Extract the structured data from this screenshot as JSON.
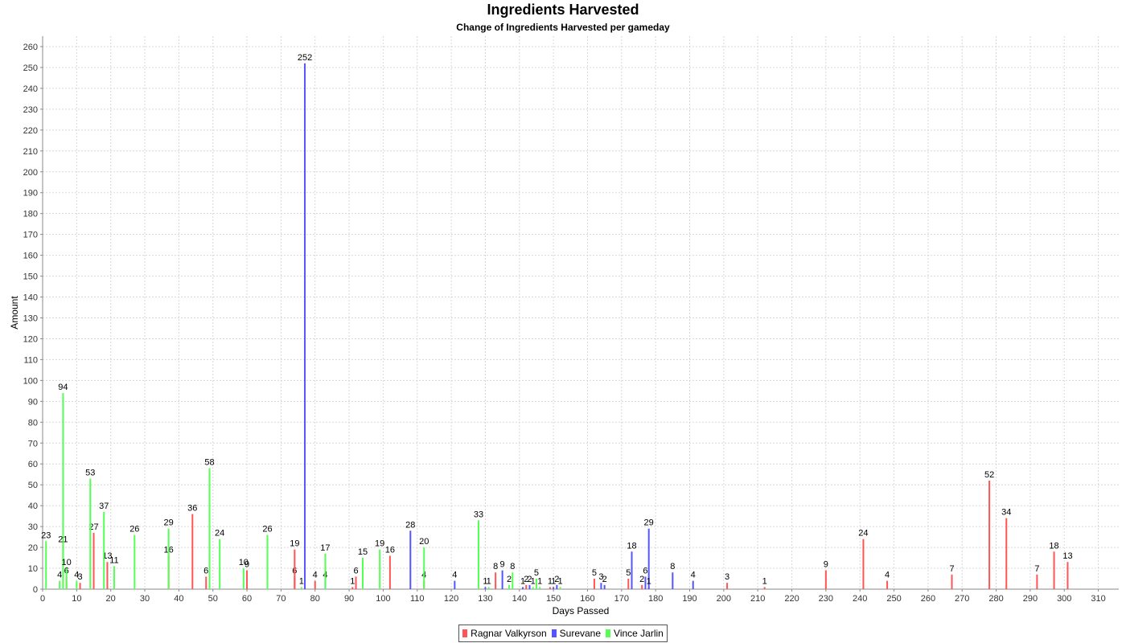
{
  "chart_data": {
    "type": "bar",
    "title": "Ingredients Harvested",
    "subtitle": "Change of Ingredients Harvested per gameday",
    "xlabel": "Days Passed",
    "ylabel": "Amount",
    "xlim": [
      0,
      316
    ],
    "ylim": [
      0,
      265
    ],
    "x_ticks": [
      0,
      10,
      20,
      30,
      40,
      50,
      60,
      70,
      80,
      90,
      100,
      110,
      120,
      130,
      140,
      150,
      160,
      170,
      180,
      190,
      200,
      210,
      220,
      230,
      240,
      250,
      260,
      270,
      280,
      290,
      300,
      310
    ],
    "y_ticks": [
      0,
      10,
      20,
      30,
      40,
      50,
      60,
      70,
      80,
      90,
      100,
      110,
      120,
      130,
      140,
      150,
      160,
      170,
      180,
      190,
      200,
      210,
      220,
      230,
      240,
      250,
      260
    ],
    "grid": true,
    "legend_position": "bottom",
    "series": [
      {
        "name": "Ragnar Valkyrson",
        "color": "#ff5555",
        "points": [
          [
            7,
            6
          ],
          [
            11,
            3
          ],
          [
            15,
            27
          ],
          [
            19,
            13
          ],
          [
            37,
            16
          ],
          [
            44,
            36
          ],
          [
            48,
            6
          ],
          [
            60,
            9
          ],
          [
            74,
            6
          ],
          [
            74,
            19
          ],
          [
            80,
            4
          ],
          [
            91,
            1
          ],
          [
            92,
            6
          ],
          [
            102,
            16
          ],
          [
            112,
            4
          ],
          [
            133,
            8
          ],
          [
            142,
            2
          ],
          [
            149,
            1
          ],
          [
            162,
            5
          ],
          [
            172,
            5
          ],
          [
            176,
            2
          ],
          [
            201,
            3
          ],
          [
            212,
            1
          ],
          [
            230,
            9
          ],
          [
            241,
            24
          ],
          [
            248,
            4
          ],
          [
            267,
            7
          ],
          [
            278,
            52
          ],
          [
            283,
            34
          ],
          [
            292,
            7
          ],
          [
            297,
            18
          ],
          [
            301,
            13
          ]
        ]
      },
      {
        "name": "Surevane",
        "color": "#5555ff",
        "points": [
          [
            77,
            252
          ],
          [
            83,
            4
          ],
          [
            108,
            28
          ],
          [
            121,
            4
          ],
          [
            130,
            1
          ],
          [
            135,
            9
          ],
          [
            141,
            1
          ],
          [
            143,
            2
          ],
          [
            150,
            1
          ],
          [
            151,
            2
          ],
          [
            164,
            3
          ],
          [
            165,
            2
          ],
          [
            173,
            18
          ],
          [
            177,
            6
          ],
          [
            178,
            29
          ],
          [
            178,
            1
          ],
          [
            185,
            8
          ],
          [
            191,
            4
          ]
        ]
      },
      {
        "name": "Vince Jarlin",
        "color": "#55ff55",
        "points": [
          [
            1,
            23
          ],
          [
            5,
            4
          ],
          [
            6,
            94
          ],
          [
            6,
            21
          ],
          [
            7,
            10
          ],
          [
            10,
            4
          ],
          [
            14,
            53
          ],
          [
            18,
            37
          ],
          [
            21,
            11
          ],
          [
            27,
            26
          ],
          [
            37,
            29
          ],
          [
            49,
            58
          ],
          [
            52,
            24
          ],
          [
            59,
            10
          ],
          [
            66,
            26
          ],
          [
            76,
            1
          ],
          [
            83,
            17
          ],
          [
            94,
            15
          ],
          [
            99,
            19
          ],
          [
            112,
            20
          ],
          [
            128,
            33
          ],
          [
            131,
            1
          ],
          [
            137,
            2
          ],
          [
            138,
            8
          ],
          [
            144,
            1
          ],
          [
            145,
            5
          ],
          [
            146,
            1
          ],
          [
            152,
            1
          ]
        ]
      }
    ]
  }
}
